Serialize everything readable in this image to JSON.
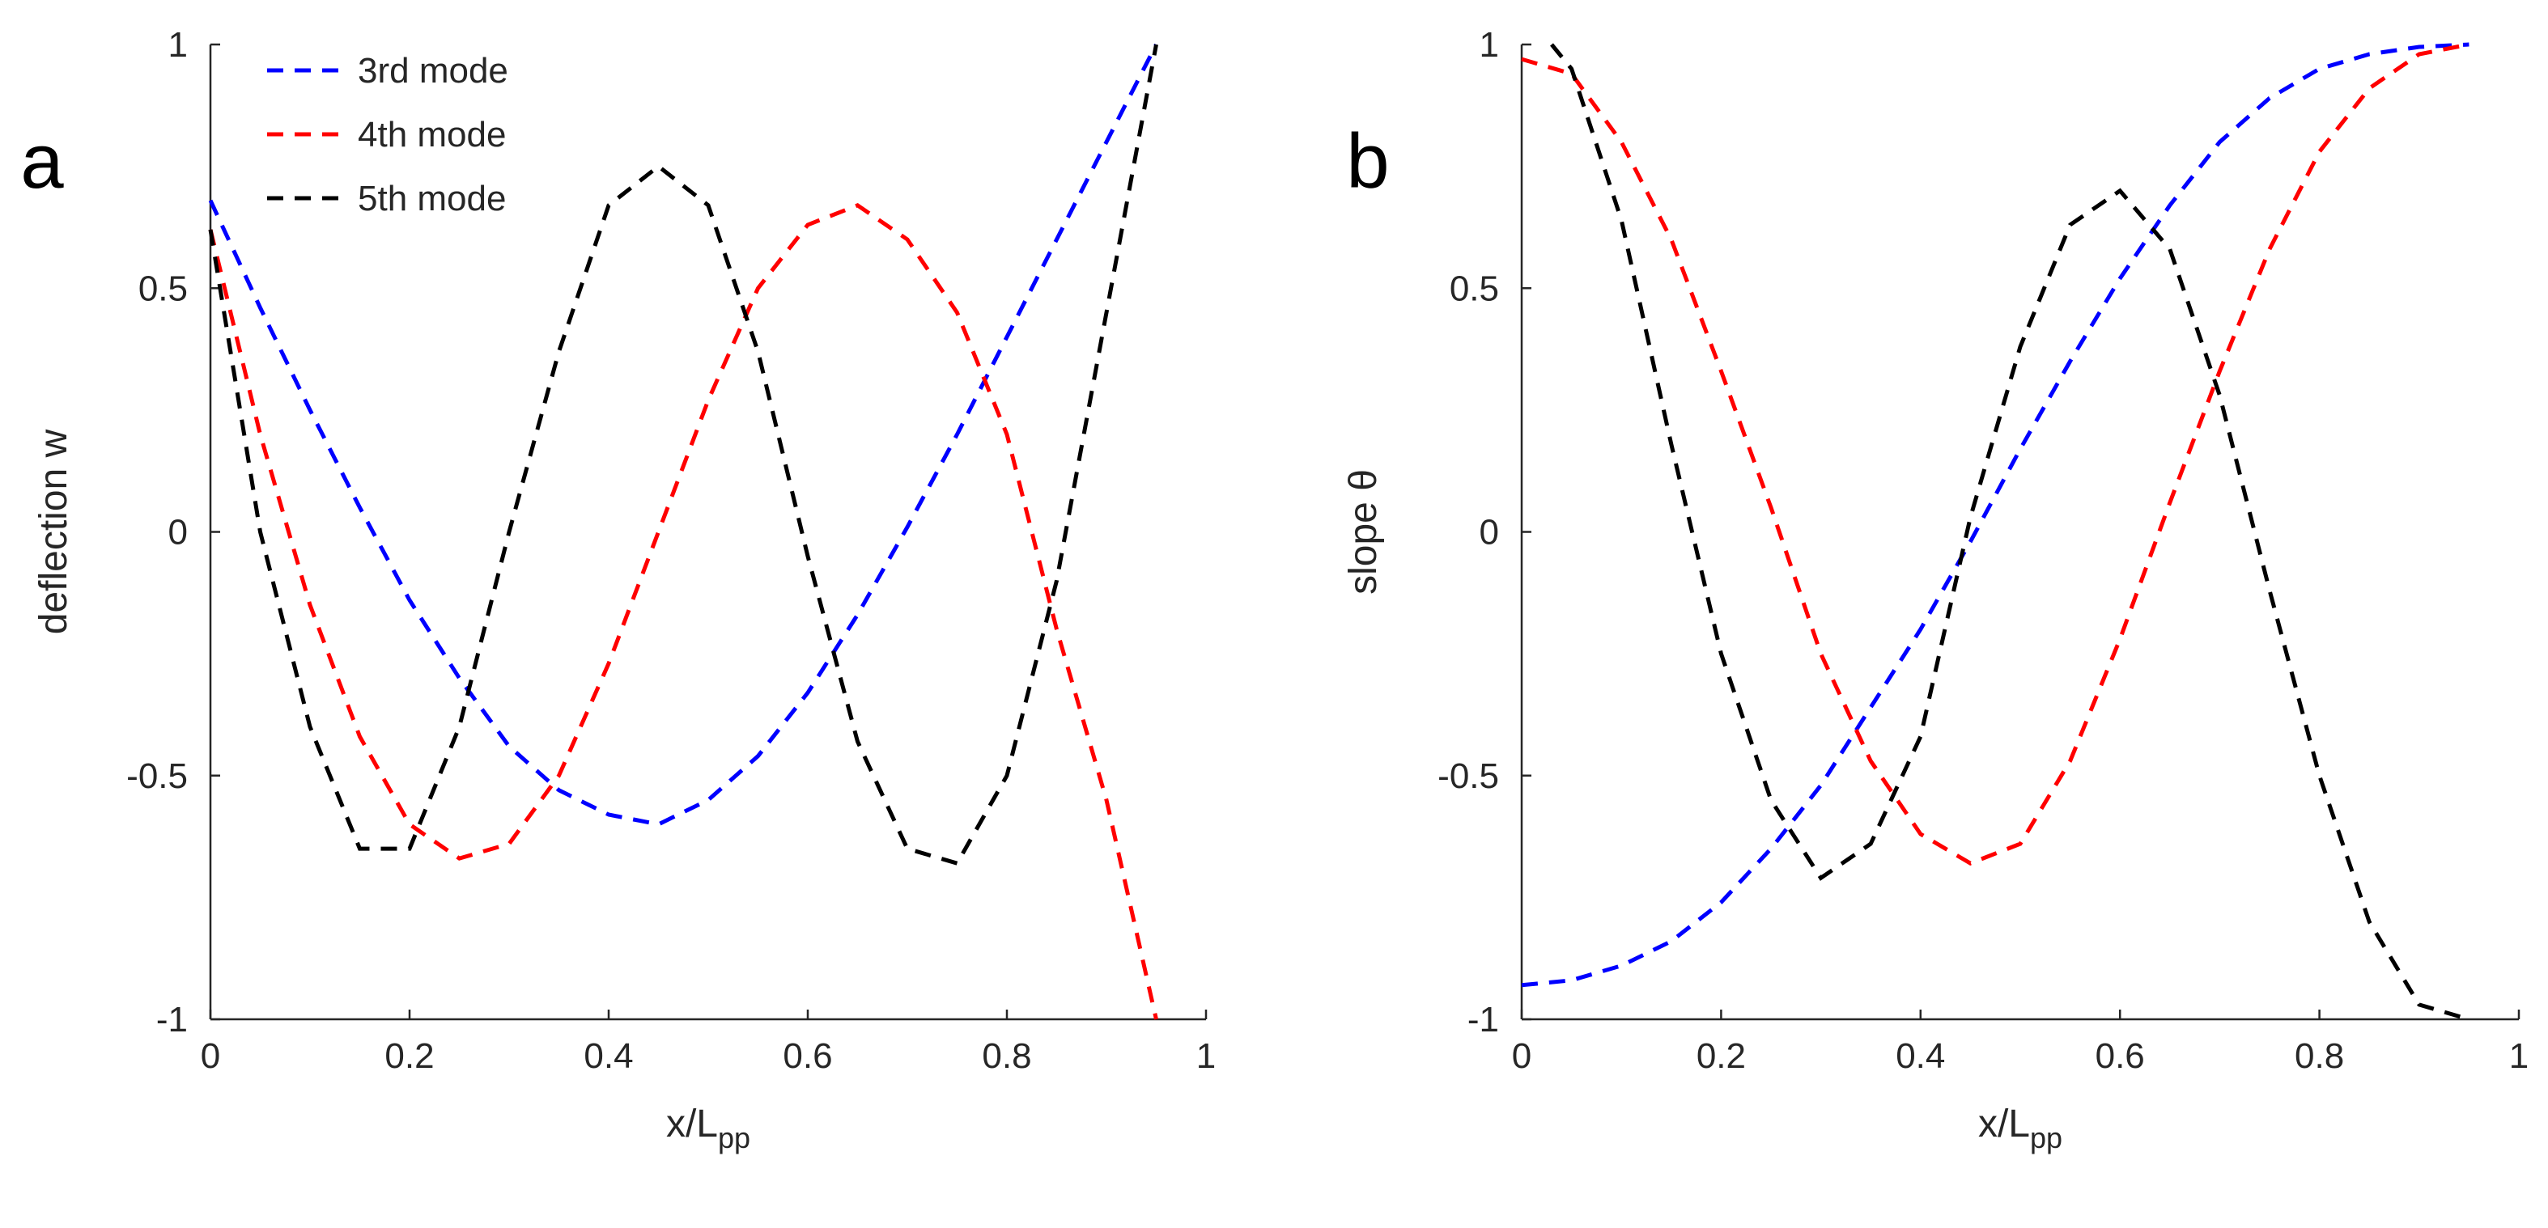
{
  "chart_data": [
    {
      "type": "line",
      "panel_label": "a",
      "xlabel": "x/L",
      "xlabel_sub": "pp",
      "ylabel": "deflection w",
      "xlim": [
        0,
        1
      ],
      "ylim": [
        -1,
        1
      ],
      "xticks": [
        0,
        0.2,
        0.4,
        0.6,
        0.8,
        1
      ],
      "xtick_labels": [
        "0",
        "0.2",
        "0.4",
        "0.6",
        "0.8",
        "1"
      ],
      "yticks": [
        -1,
        -0.5,
        0,
        0.5,
        1
      ],
      "ytick_labels": [
        "-1",
        "-0.5",
        "0",
        "0.5",
        "1"
      ],
      "legend": {
        "position": "top-left",
        "entries": [
          "3rd mode",
          "4th mode",
          "5th mode"
        ]
      },
      "series": [
        {
          "name": "3rd mode",
          "color": "#0000ff",
          "x": [
            0,
            0.05,
            0.1,
            0.15,
            0.2,
            0.25,
            0.3,
            0.35,
            0.4,
            0.45,
            0.5,
            0.55,
            0.6,
            0.65,
            0.7,
            0.75,
            0.8,
            0.85,
            0.9,
            0.95
          ],
          "y": [
            0.68,
            0.46,
            0.25,
            0.05,
            -0.14,
            -0.3,
            -0.44,
            -0.53,
            -0.58,
            -0.6,
            -0.55,
            -0.46,
            -0.33,
            -0.17,
            0.01,
            0.2,
            0.4,
            0.6,
            0.8,
            1.0
          ]
        },
        {
          "name": "4th mode",
          "color": "#ff0000",
          "x": [
            0,
            0.05,
            0.1,
            0.15,
            0.2,
            0.25,
            0.3,
            0.35,
            0.4,
            0.45,
            0.5,
            0.55,
            0.6,
            0.65,
            0.7,
            0.75,
            0.8,
            0.85,
            0.9,
            0.95
          ],
          "y": [
            0.62,
            0.2,
            -0.15,
            -0.42,
            -0.6,
            -0.67,
            -0.64,
            -0.5,
            -0.27,
            0.0,
            0.27,
            0.5,
            0.63,
            0.67,
            0.6,
            0.45,
            0.2,
            -0.2,
            -0.55,
            -1.0
          ]
        },
        {
          "name": "5th mode",
          "color": "#000000",
          "x": [
            0,
            0.05,
            0.1,
            0.15,
            0.2,
            0.25,
            0.3,
            0.35,
            0.4,
            0.45,
            0.5,
            0.55,
            0.6,
            0.65,
            0.7,
            0.75,
            0.8,
            0.85,
            0.9,
            0.95
          ],
          "y": [
            0.62,
            0.0,
            -0.4,
            -0.65,
            -0.65,
            -0.4,
            0.0,
            0.37,
            0.67,
            0.75,
            0.67,
            0.37,
            -0.05,
            -0.43,
            -0.65,
            -0.68,
            -0.5,
            -0.1,
            0.45,
            1.0
          ]
        }
      ]
    },
    {
      "type": "line",
      "panel_label": "b",
      "xlabel": "x/L",
      "xlabel_sub": "pp",
      "ylabel": "slope θ",
      "xlim": [
        0,
        1
      ],
      "ylim": [
        -1,
        1
      ],
      "xticks": [
        0,
        0.2,
        0.4,
        0.6,
        0.8,
        1
      ],
      "xtick_labels": [
        "0",
        "0.2",
        "0.4",
        "0.6",
        "0.8",
        "1"
      ],
      "yticks": [
        -1,
        -0.5,
        0,
        0.5,
        1
      ],
      "ytick_labels": [
        "-1",
        "-0.5",
        "0",
        "0.5",
        "1"
      ],
      "series": [
        {
          "name": "3rd mode",
          "color": "#0000ff",
          "x": [
            0,
            0.05,
            0.1,
            0.15,
            0.2,
            0.25,
            0.3,
            0.35,
            0.4,
            0.45,
            0.5,
            0.55,
            0.6,
            0.65,
            0.7,
            0.75,
            0.8,
            0.85,
            0.9,
            0.95
          ],
          "y": [
            -0.93,
            -0.92,
            -0.89,
            -0.84,
            -0.76,
            -0.65,
            -0.52,
            -0.36,
            -0.2,
            -0.02,
            0.17,
            0.35,
            0.52,
            0.67,
            0.8,
            0.89,
            0.95,
            0.98,
            0.995,
            1.0
          ]
        },
        {
          "name": "4th mode",
          "color": "#ff0000",
          "x": [
            0,
            0.05,
            0.1,
            0.15,
            0.2,
            0.25,
            0.3,
            0.35,
            0.4,
            0.45,
            0.5,
            0.55,
            0.6,
            0.65,
            0.7,
            0.75,
            0.8,
            0.85,
            0.9,
            0.95
          ],
          "y": [
            0.97,
            0.94,
            0.8,
            0.6,
            0.33,
            0.05,
            -0.25,
            -0.47,
            -0.62,
            -0.68,
            -0.64,
            -0.47,
            -0.22,
            0.06,
            0.33,
            0.58,
            0.78,
            0.91,
            0.98,
            1.0
          ]
        },
        {
          "name": "5th mode",
          "color": "#000000",
          "x": [
            0.03,
            0.05,
            0.1,
            0.15,
            0.2,
            0.25,
            0.3,
            0.35,
            0.4,
            0.45,
            0.5,
            0.55,
            0.6,
            0.65,
            0.7,
            0.75,
            0.8,
            0.85,
            0.9,
            0.95
          ],
          "y": [
            1.0,
            0.95,
            0.64,
            0.18,
            -0.25,
            -0.55,
            -0.71,
            -0.64,
            -0.42,
            0.03,
            0.38,
            0.63,
            0.7,
            0.58,
            0.28,
            -0.12,
            -0.5,
            -0.8,
            -0.97,
            -1.0
          ]
        }
      ]
    }
  ]
}
